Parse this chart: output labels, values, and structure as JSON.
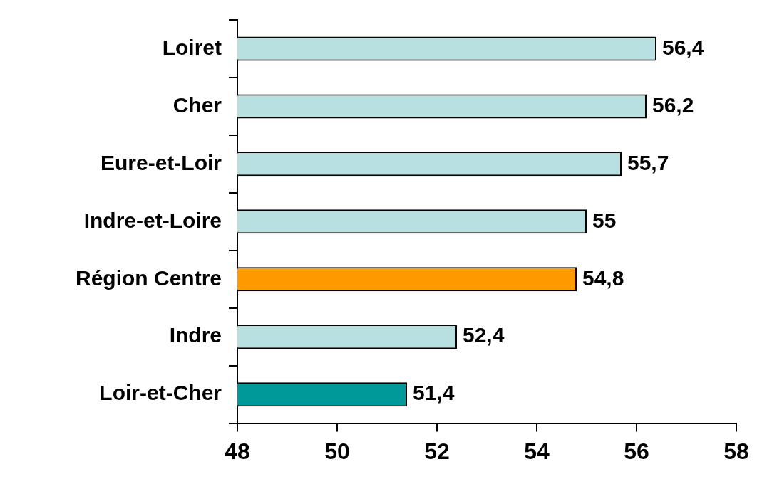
{
  "chart_data": {
    "type": "bar",
    "orientation": "horizontal",
    "categories": [
      "Loiret",
      "Cher",
      "Eure-et-Loir",
      "Indre-et-Loire",
      "Région Centre",
      "Indre",
      "Loir-et-Cher"
    ],
    "values": [
      56.4,
      56.2,
      55.7,
      55,
      54.8,
      52.4,
      51.4
    ],
    "colors": [
      "#b8e0e0",
      "#b8e0e0",
      "#b8e0e0",
      "#b8e0e0",
      "#ff9900",
      "#b8e0e0",
      "#009999"
    ],
    "value_labels": [
      "56,4",
      "56,2",
      "55,7",
      "55",
      "54,8",
      "52,4",
      "51,4"
    ],
    "xlim": [
      48,
      58
    ],
    "xticks": [
      48,
      50,
      52,
      54,
      56,
      58
    ],
    "grid": false,
    "legend": false
  }
}
